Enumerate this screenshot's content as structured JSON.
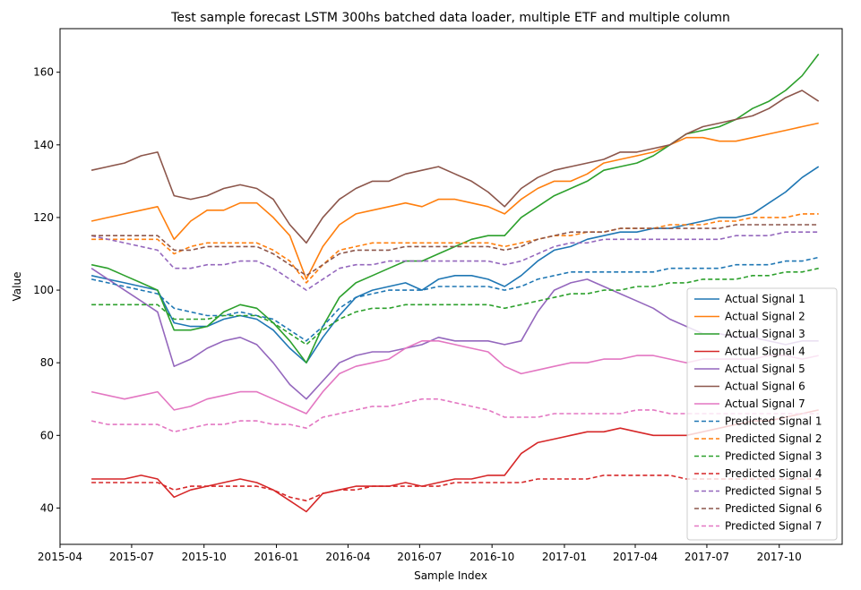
{
  "chart_data": {
    "type": "line",
    "title": "Test sample forecast LSTM 300hs batched data loader, multiple ETF and multiple column",
    "xlabel": "Sample Index",
    "ylabel": "Value",
    "xlim": [
      "2015-04-01",
      "2017-12-20"
    ],
    "ylim": [
      30,
      172
    ],
    "x_ticks": [
      "2015-04",
      "2015-07",
      "2015-10",
      "2016-01",
      "2016-04",
      "2016-07",
      "2016-10",
      "2017-01",
      "2017-04",
      "2017-07",
      "2017-10"
    ],
    "y_ticks": [
      40,
      60,
      80,
      100,
      120,
      140,
      160
    ],
    "grid": false,
    "legend_position": "lower right",
    "x": [
      "2015-05-11",
      "2015-06-01",
      "2015-06-22",
      "2015-07-13",
      "2015-08-03",
      "2015-08-24",
      "2015-09-14",
      "2015-10-05",
      "2015-10-26",
      "2015-11-16",
      "2015-12-07",
      "2015-12-28",
      "2016-01-18",
      "2016-02-08",
      "2016-02-29",
      "2016-03-21",
      "2016-04-11",
      "2016-05-02",
      "2016-05-23",
      "2016-06-13",
      "2016-07-04",
      "2016-07-25",
      "2016-08-15",
      "2016-09-05",
      "2016-09-26",
      "2016-10-17",
      "2016-11-07",
      "2016-11-28",
      "2016-12-19",
      "2017-01-09",
      "2017-01-30",
      "2017-02-20",
      "2017-03-13",
      "2017-04-03",
      "2017-04-24",
      "2017-05-15",
      "2017-06-05",
      "2017-06-26",
      "2017-07-17",
      "2017-08-07",
      "2017-08-28",
      "2017-09-18",
      "2017-10-09",
      "2017-10-30",
      "2017-11-20"
    ],
    "series": [
      {
        "name": "Actual Signal 1",
        "color": "#1f77b4",
        "style": "solid",
        "values": [
          104,
          103,
          102,
          101,
          100,
          91,
          90,
          90,
          92,
          93,
          92,
          89,
          84,
          80,
          87,
          93,
          98,
          100,
          101,
          102,
          100,
          103,
          104,
          104,
          103,
          101,
          104,
          108,
          111,
          112,
          114,
          115,
          116,
          116,
          117,
          117,
          118,
          119,
          120,
          120,
          121,
          124,
          127,
          131,
          134
        ]
      },
      {
        "name": "Actual Signal 2",
        "color": "#ff7f0e",
        "style": "solid",
        "values": [
          119,
          120,
          121,
          122,
          123,
          114,
          119,
          122,
          122,
          124,
          124,
          120,
          115,
          103,
          112,
          118,
          121,
          122,
          123,
          124,
          123,
          125,
          125,
          124,
          123,
          121,
          125,
          128,
          130,
          130,
          132,
          135,
          136,
          137,
          138,
          140,
          142,
          142,
          141,
          141,
          142,
          143,
          144,
          145,
          146
        ]
      },
      {
        "name": "Actual Signal 3",
        "color": "#2ca02c",
        "style": "solid",
        "values": [
          107,
          106,
          104,
          102,
          100,
          89,
          89,
          90,
          94,
          96,
          95,
          91,
          86,
          80,
          90,
          98,
          102,
          104,
          106,
          108,
          108,
          110,
          112,
          114,
          115,
          115,
          120,
          123,
          126,
          128,
          130,
          133,
          134,
          135,
          137,
          140,
          143,
          144,
          145,
          147,
          150,
          152,
          155,
          159,
          165
        ]
      },
      {
        "name": "Actual Signal 4",
        "color": "#d62728",
        "style": "solid",
        "values": [
          48,
          48,
          48,
          49,
          48,
          43,
          45,
          46,
          47,
          48,
          47,
          45,
          42,
          39,
          44,
          45,
          46,
          46,
          46,
          47,
          46,
          47,
          48,
          48,
          49,
          49,
          55,
          58,
          59,
          60,
          61,
          61,
          62,
          61,
          60,
          60,
          60,
          61,
          62,
          63,
          64,
          64,
          65,
          66,
          67
        ]
      },
      {
        "name": "Actual Signal 5",
        "color": "#9467bd",
        "style": "solid",
        "values": [
          106,
          103,
          100,
          97,
          94,
          79,
          81,
          84,
          86,
          87,
          85,
          80,
          74,
          70,
          75,
          80,
          82,
          83,
          83,
          84,
          85,
          87,
          86,
          86,
          86,
          85,
          86,
          94,
          100,
          102,
          103,
          101,
          99,
          97,
          95,
          92,
          90,
          88,
          88,
          87,
          87,
          86,
          85,
          86,
          86
        ]
      },
      {
        "name": "Actual Signal 6",
        "color": "#8c564b",
        "style": "solid",
        "values": [
          133,
          134,
          135,
          137,
          138,
          126,
          125,
          126,
          128,
          129,
          128,
          125,
          118,
          113,
          120,
          125,
          128,
          130,
          130,
          132,
          133,
          134,
          132,
          130,
          127,
          123,
          128,
          131,
          133,
          134,
          135,
          136,
          138,
          138,
          139,
          140,
          143,
          145,
          146,
          147,
          148,
          150,
          153,
          155,
          152
        ]
      },
      {
        "name": "Actual Signal 7",
        "color": "#e377c2",
        "style": "solid",
        "values": [
          72,
          71,
          70,
          71,
          72,
          67,
          68,
          70,
          71,
          72,
          72,
          70,
          68,
          66,
          72,
          77,
          79,
          80,
          81,
          84,
          86,
          86,
          85,
          84,
          83,
          79,
          77,
          78,
          79,
          80,
          80,
          81,
          81,
          82,
          82,
          81,
          80,
          81,
          81,
          81,
          81,
          82,
          82,
          81,
          82
        ]
      },
      {
        "name": "Predicted Signal 1",
        "color": "#1f77b4",
        "style": "dashed",
        "values": [
          103,
          102,
          101,
          100,
          99,
          95,
          94,
          93,
          93,
          94,
          93,
          92,
          89,
          86,
          90,
          95,
          98,
          99,
          100,
          100,
          100,
          101,
          101,
          101,
          101,
          100,
          101,
          103,
          104,
          105,
          105,
          105,
          105,
          105,
          105,
          106,
          106,
          106,
          106,
          107,
          107,
          107,
          108,
          108,
          109
        ]
      },
      {
        "name": "Predicted Signal 2",
        "color": "#ff7f0e",
        "style": "dashed",
        "values": [
          114,
          114,
          114,
          114,
          114,
          110,
          112,
          113,
          113,
          113,
          113,
          111,
          108,
          102,
          107,
          111,
          112,
          113,
          113,
          113,
          113,
          113,
          113,
          113,
          113,
          112,
          113,
          114,
          115,
          115,
          116,
          116,
          117,
          117,
          117,
          118,
          118,
          118,
          119,
          119,
          120,
          120,
          120,
          121,
          121
        ]
      },
      {
        "name": "Predicted Signal 3",
        "color": "#2ca02c",
        "style": "dashed",
        "values": [
          96,
          96,
          96,
          96,
          96,
          92,
          92,
          92,
          93,
          93,
          93,
          91,
          88,
          85,
          89,
          92,
          94,
          95,
          95,
          96,
          96,
          96,
          96,
          96,
          96,
          95,
          96,
          97,
          98,
          99,
          99,
          100,
          100,
          101,
          101,
          102,
          102,
          103,
          103,
          103,
          104,
          104,
          105,
          105,
          106
        ]
      },
      {
        "name": "Predicted Signal 4",
        "color": "#d62728",
        "style": "dashed",
        "values": [
          47,
          47,
          47,
          47,
          47,
          45,
          46,
          46,
          46,
          46,
          46,
          45,
          43,
          42,
          44,
          45,
          45,
          46,
          46,
          46,
          46,
          46,
          47,
          47,
          47,
          47,
          47,
          48,
          48,
          48,
          48,
          49,
          49,
          49,
          49,
          49,
          48,
          48,
          48,
          48,
          48,
          48,
          48,
          48,
          48
        ]
      },
      {
        "name": "Predicted Signal 5",
        "color": "#9467bd",
        "style": "dashed",
        "values": [
          115,
          114,
          113,
          112,
          111,
          106,
          106,
          107,
          107,
          108,
          108,
          106,
          103,
          100,
          103,
          106,
          107,
          107,
          108,
          108,
          108,
          108,
          108,
          108,
          108,
          107,
          108,
          110,
          112,
          113,
          113,
          114,
          114,
          114,
          114,
          114,
          114,
          114,
          114,
          115,
          115,
          115,
          116,
          116,
          116
        ]
      },
      {
        "name": "Predicted Signal 6",
        "color": "#8c564b",
        "style": "dashed",
        "values": [
          115,
          115,
          115,
          115,
          115,
          111,
          111,
          112,
          112,
          112,
          112,
          110,
          107,
          104,
          107,
          110,
          111,
          111,
          111,
          112,
          112,
          112,
          112,
          112,
          112,
          111,
          112,
          114,
          115,
          116,
          116,
          116,
          117,
          117,
          117,
          117,
          117,
          117,
          117,
          118,
          118,
          118,
          118,
          118,
          118
        ]
      },
      {
        "name": "Predicted Signal 7",
        "color": "#e377c2",
        "style": "dashed",
        "values": [
          64,
          63,
          63,
          63,
          63,
          61,
          62,
          63,
          63,
          64,
          64,
          63,
          63,
          62,
          65,
          66,
          67,
          68,
          68,
          69,
          70,
          70,
          69,
          68,
          67,
          65,
          65,
          65,
          66,
          66,
          66,
          66,
          66,
          67,
          67,
          66,
          66,
          66,
          66,
          66,
          66,
          66,
          66,
          66,
          66
        ]
      }
    ]
  }
}
